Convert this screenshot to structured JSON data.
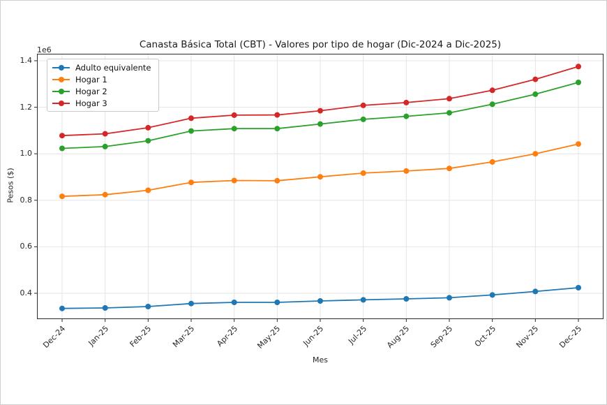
{
  "figure": {
    "title": "Canasta Básica Total (CBT) - Valores por tipo de hogar (Dic-2024 a Dic-2025)",
    "xlabel": "Mes",
    "ylabel": "Pesos ($)",
    "y_offset_text": "1e6"
  },
  "chart_data": {
    "type": "line",
    "title": "Canasta Básica Total (CBT) - Valores por tipo de hogar (Dic-2024 a Dic-2025)",
    "xlabel": "Mes",
    "ylabel": "Pesos ($)",
    "y_scale_label": "1e6",
    "values_unit": "millions of pesos (1e6 $)",
    "x": [
      "Dec-24",
      "Jan-25",
      "Feb-25",
      "Mar-25",
      "Apr-25",
      "May-25",
      "Jun-25",
      "Jul-25",
      "Aug-25",
      "Sep-25",
      "Oct-25",
      "Nov-25",
      "Dec-25"
    ],
    "yticks": [
      0.4,
      0.6,
      0.8,
      1.0,
      1.2,
      1.4
    ],
    "ylim": [
      0.289,
      1.43
    ],
    "grid": true,
    "legend": {
      "position": "upper left",
      "entries": [
        "Adulto equivalente",
        "Hogar 1",
        "Hogar 2",
        "Hogar 3"
      ]
    },
    "series": [
      {
        "name": "Adulto equivalente",
        "color": "#1f77b4",
        "values": [
          0.335,
          0.337,
          0.343,
          0.356,
          0.361,
          0.361,
          0.367,
          0.372,
          0.376,
          0.381,
          0.393,
          0.408,
          0.424
        ]
      },
      {
        "name": "Hogar 1",
        "color": "#ff7f0e",
        "values": [
          0.817,
          0.824,
          0.843,
          0.877,
          0.885,
          0.884,
          0.901,
          0.917,
          0.926,
          0.937,
          0.965,
          1.0,
          1.042
        ]
      },
      {
        "name": "Hogar 2",
        "color": "#2ca02c",
        "values": [
          1.023,
          1.031,
          1.056,
          1.098,
          1.108,
          1.108,
          1.128,
          1.148,
          1.161,
          1.176,
          1.213,
          1.256,
          1.307
        ]
      },
      {
        "name": "Hogar 3",
        "color": "#d62728",
        "values": [
          1.078,
          1.086,
          1.112,
          1.153,
          1.166,
          1.167,
          1.185,
          1.208,
          1.22,
          1.237,
          1.273,
          1.32,
          1.375
        ]
      }
    ]
  }
}
